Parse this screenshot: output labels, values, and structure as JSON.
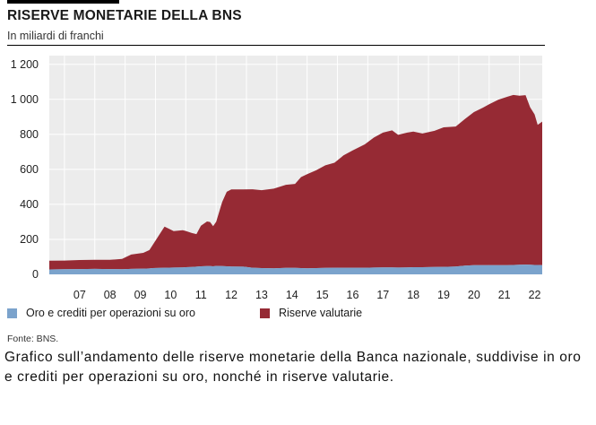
{
  "header": {
    "title": "RISERVE MONETARIE DELLA BNS",
    "subtitle": "In miliardi di franchi"
  },
  "chart_data": {
    "type": "area",
    "stacked": true,
    "title": "RISERVE MONETARIE DELLA BNS",
    "subtitle": "In miliardi di franchi",
    "ylim": [
      0,
      1250
    ],
    "yticks": [
      0,
      200,
      400,
      600,
      800,
      1000,
      1200
    ],
    "ytick_labels": [
      "0",
      "200",
      "400",
      "600",
      "800",
      "1 000",
      "1 200"
    ],
    "xlim": [
      2006.5,
      2022.75
    ],
    "xtick_labels": [
      "07",
      "08",
      "09",
      "10",
      "11",
      "12",
      "13",
      "14",
      "15",
      "16",
      "17",
      "18",
      "19",
      "20",
      "21",
      "22"
    ],
    "grid": true,
    "legend_position": "bottom",
    "x": [
      2006.5,
      2007.0,
      2007.5,
      2008.0,
      2008.5,
      2008.9,
      2009.2,
      2009.6,
      2009.8,
      2009.9,
      2010.3,
      2010.6,
      2010.9,
      2011.0,
      2011.2,
      2011.35,
      2011.5,
      2011.7,
      2011.8,
      2011.9,
      2012.0,
      2012.2,
      2012.35,
      2012.5,
      2012.9,
      2013.2,
      2013.5,
      2013.9,
      2014.3,
      2014.6,
      2014.8,
      2015.0,
      2015.3,
      2015.6,
      2015.9,
      2016.2,
      2016.5,
      2016.9,
      2017.2,
      2017.5,
      2017.8,
      2018.0,
      2018.3,
      2018.5,
      2018.8,
      2019.2,
      2019.5,
      2019.9,
      2020.2,
      2020.5,
      2020.8,
      2021.0,
      2021.3,
      2021.6,
      2021.8,
      2022.0,
      2022.2,
      2022.35,
      2022.5,
      2022.6,
      2022.75
    ],
    "series": [
      {
        "name": "Oro e crediti per operazioni su oro",
        "color": "#7ba3cc",
        "values": [
          28,
          29,
          30,
          31,
          30,
          29,
          31,
          33,
          34,
          36,
          38,
          39,
          40,
          41,
          42,
          44,
          46,
          47,
          47,
          46,
          48,
          47,
          46,
          45,
          44,
          38,
          36,
          35,
          37,
          37,
          36,
          35,
          36,
          37,
          38,
          38,
          38,
          38,
          39,
          40,
          40,
          39,
          40,
          41,
          41,
          42,
          43,
          45,
          50,
          52,
          53,
          52,
          52,
          53,
          54,
          55,
          56,
          55,
          54,
          54,
          53
        ]
      },
      {
        "name": "Riserve valutarie",
        "color": "#962a34",
        "values": [
          50,
          50,
          52,
          52,
          53,
          59,
          82,
          90,
          105,
          130,
          235,
          208,
          212,
          207,
          194,
          186,
          232,
          255,
          252,
          229,
          252,
          367,
          426,
          440,
          441,
          448,
          445,
          455,
          475,
          480,
          520,
          538,
          559,
          586,
          600,
          642,
          670,
          705,
          743,
          770,
          783,
          758,
          770,
          775,
          764,
          778,
          797,
          800,
          838,
          875,
          900,
          920,
          946,
          962,
          971,
          966,
          968,
          900,
          860,
          800,
          820
        ]
      }
    ]
  },
  "legend": {
    "items": [
      {
        "label": "Oro e crediti per operazioni su oro",
        "color": "#7ba3cc"
      },
      {
        "label": "Riserve valutarie",
        "color": "#962a34"
      }
    ]
  },
  "source": "Fonte: BNS.",
  "caption": "Grafico sull’andamento delle riserve monetarie della Banca nazionale, suddivise in oro e crediti per operazioni su oro, nonché in riserve valutarie."
}
